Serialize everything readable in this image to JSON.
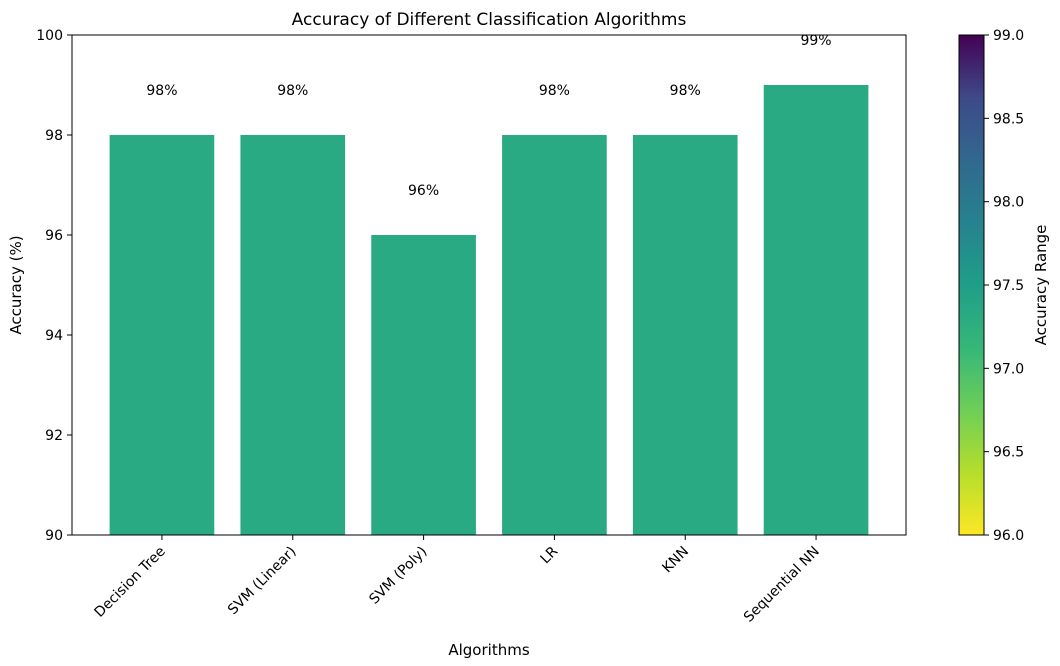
{
  "chart_data": {
    "type": "bar",
    "title": "Accuracy of Different Classification Algorithms",
    "xlabel": "Algorithms",
    "ylabel": "Accuracy (%)",
    "ylim": [
      90,
      100
    ],
    "yticks": [
      "90",
      "92",
      "94",
      "96",
      "98",
      "100"
    ],
    "categories": [
      "Decision Tree",
      "SVM (Linear)",
      "SVM (Poly)",
      "LR",
      "KNN",
      "Sequential NN"
    ],
    "values": [
      98,
      98,
      96,
      98,
      98,
      99
    ],
    "data_labels": [
      "98%",
      "98%",
      "96%",
      "98%",
      "98%",
      "99%"
    ],
    "bar_color": "#2aaa82",
    "grid": false,
    "colorbar": {
      "label": "Accuracy Range",
      "range": [
        96.0,
        99.0
      ],
      "ticks": [
        "96.0",
        "96.5",
        "97.0",
        "97.5",
        "98.0",
        "98.5",
        "99.0"
      ],
      "colormap": "viridis (reversed)"
    }
  }
}
